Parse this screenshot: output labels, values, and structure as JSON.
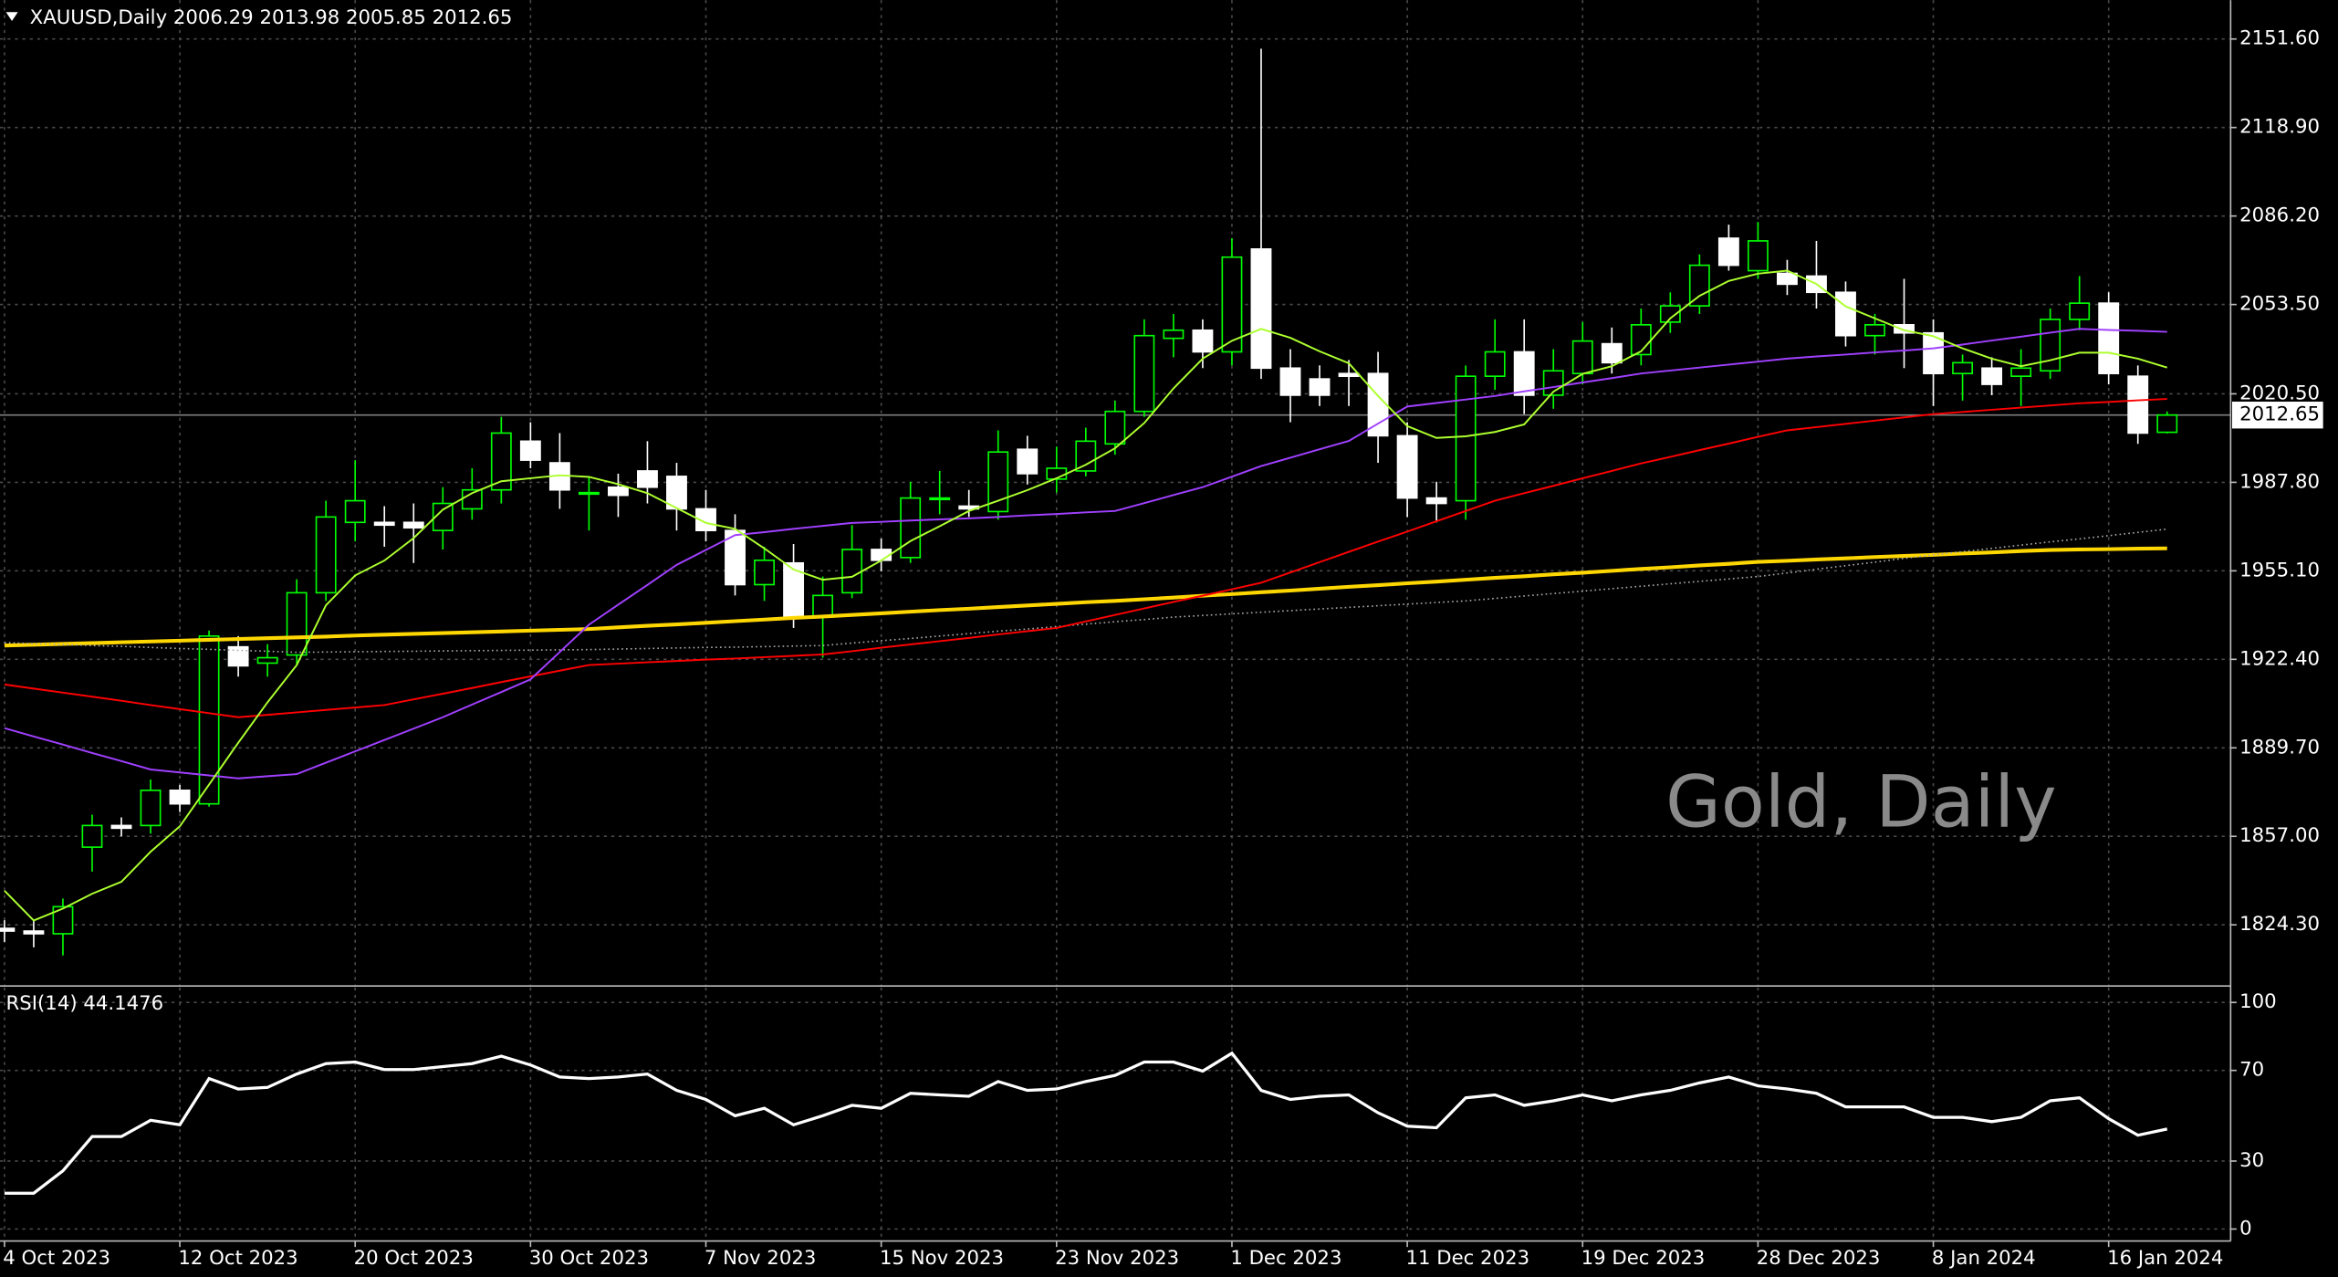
{
  "chart_data": [
    {
      "type": "candlestick",
      "title": "XAUUSD,Daily  2006.29 2013.98 2005.85 2012.65",
      "watermark": "Gold, Daily",
      "categories": [
        "4 Oct 2023",
        null,
        null,
        null,
        null,
        null,
        "12 Oct 2023",
        null,
        null,
        null,
        null,
        null,
        "20 Oct 2023",
        null,
        null,
        null,
        null,
        null,
        "30 Oct 2023",
        null,
        null,
        null,
        null,
        null,
        "7 Nov 2023",
        null,
        null,
        null,
        null,
        null,
        "15 Nov 2023",
        null,
        null,
        null,
        null,
        null,
        "23 Nov 2023",
        null,
        null,
        null,
        null,
        null,
        "1 Dec 2023",
        null,
        null,
        null,
        null,
        null,
        "11 Dec 2023",
        null,
        null,
        null,
        null,
        null,
        "19 Dec 2023",
        null,
        null,
        null,
        null,
        null,
        "28 Dec 2023",
        null,
        null,
        null,
        null,
        null,
        "8 Jan 2024",
        null,
        null,
        null,
        null,
        null,
        "16 Jan 2024",
        null,
        null
      ],
      "open": [
        1823,
        1822,
        1821,
        1853,
        1861,
        1861,
        1874,
        1869,
        1927,
        1921,
        1924,
        1947,
        1973,
        1973,
        1973,
        1970,
        1978,
        1985,
        2003,
        1995,
        1984,
        1986,
        1992,
        1990,
        1978,
        1970,
        1950,
        1958,
        1938,
        1947,
        1963,
        1960,
        1982,
        1979,
        1977,
        2000,
        1989,
        1992,
        2002,
        2014,
        2041,
        2044,
        2036,
        2074,
        2030,
        2026,
        2028,
        2028,
        2005,
        1982,
        1981,
        2027,
        2036,
        2020,
        2028,
        2039,
        2035,
        2047,
        2053,
        2078,
        2066,
        2065,
        2064,
        2058,
        2042,
        2046,
        2043,
        2028,
        2030,
        2027,
        2029,
        2048,
        2054,
        2027,
        2006.29
      ],
      "high": [
        1826,
        1826,
        1834,
        1865,
        1864,
        1878,
        1876,
        1933,
        1931,
        1928,
        1952,
        1981,
        1996,
        1979,
        1980,
        1986,
        1993,
        2012,
        2010,
        2006,
        1990,
        1991,
        2003,
        1995,
        1985,
        1976,
        1964,
        1965,
        1953,
        1972,
        1967,
        1988,
        1992,
        1985,
        2007,
        2005,
        2001,
        2008,
        2018,
        2048,
        2050,
        2048,
        2078,
        2148,
        2037,
        2031,
        2033,
        2036,
        2010,
        1988,
        2031,
        2048,
        2048,
        2037,
        2047,
        2045,
        2052,
        2058,
        2072,
        2083,
        2084,
        2070,
        2077,
        2062,
        2050,
        2063,
        2048,
        2035,
        2034,
        2037,
        2052,
        2064,
        2058,
        2031,
        2013.98
      ],
      "low": [
        1818,
        1816,
        1813,
        1844,
        1857,
        1858,
        1866,
        1868,
        1916,
        1916,
        1920,
        1944,
        1966,
        1964,
        1958,
        1963,
        1974,
        1980,
        1993,
        1978,
        1970,
        1975,
        1980,
        1970,
        1966,
        1946,
        1944,
        1934,
        1923,
        1945,
        1955,
        1958,
        1976,
        1975,
        1974,
        1987,
        1984,
        1990,
        1998,
        2012,
        2034,
        2030,
        2031,
        2026,
        2010,
        2016,
        2016,
        1995,
        1975,
        1973,
        1974,
        2022,
        2013,
        2015,
        2024,
        2028,
        2031,
        2043,
        2050,
        2066,
        2063,
        2057,
        2052,
        2038,
        2035,
        2030,
        2016,
        2018,
        2020,
        2016,
        2026,
        2044,
        2024,
        2002,
        2005.85
      ],
      "close": [
        1822,
        1821,
        1831,
        1861,
        1860,
        1874,
        1869,
        1931,
        1920,
        1923,
        1947,
        1975,
        1981,
        1972,
        1971,
        1980,
        1985,
        2006,
        1996,
        1985,
        1984,
        1983,
        1986,
        1978,
        1970,
        1950,
        1959,
        1938,
        1946,
        1963,
        1959,
        1982,
        1982,
        1978,
        1999,
        1991,
        1993,
        2003,
        2014,
        2042,
        2044,
        2036,
        2071,
        2030,
        2020,
        2020,
        2027,
        2005,
        1982,
        1980,
        2027,
        2036,
        2020,
        2029,
        2040,
        2032,
        2046,
        2053,
        2068,
        2068,
        2077,
        2061,
        2058,
        2042,
        2046,
        2043,
        2028,
        2032,
        2024,
        2030,
        2048,
        2054,
        2028,
        2006,
        2012.65
      ],
      "up_color": "#00ff00",
      "down_color": "#ffffff",
      "lines": [
        {
          "color": "#ffd700",
          "style": "thick",
          "values": [
            1927.5,
            1927.8,
            1928.1,
            1928.4,
            1928.7,
            1929.0,
            1929.3,
            1929.6,
            1929.9,
            1930.2,
            1930.5,
            1930.8,
            1931.2,
            1931.5,
            1931.8,
            1932.1,
            1932.4,
            1932.7,
            1933.0,
            1933.3,
            1933.6,
            1934.2,
            1934.8,
            1935.3,
            1935.9,
            1936.5,
            1937.1,
            1937.7,
            1938.2,
            1938.8,
            1939.4,
            1940.0,
            1940.6,
            1941.1,
            1941.7,
            1942.3,
            1942.9,
            1943.5,
            1944.0,
            1944.6,
            1945.2,
            1945.9,
            1946.5,
            1947.2,
            1947.8,
            1948.5,
            1949.2,
            1949.8,
            1950.5,
            1951.1,
            1951.8,
            1952.5,
            1953.1,
            1953.8,
            1954.4,
            1955.1,
            1955.8,
            1956.4,
            1957.1,
            1957.7,
            1958.4,
            1958.8,
            1959.3,
            1959.7,
            1960.2,
            1960.6,
            1961.0,
            1961.5,
            1961.9,
            1962.4,
            1962.8,
            1963.0,
            1963.1,
            1963.3,
            1963.4
          ]
        },
        {
          "color": "#a9a9a9",
          "style": "dotted",
          "values": [
            1928.6,
            1928.2,
            1927.9,
            1927.5,
            1927.2,
            1926.8,
            1926.4,
            1926.1,
            1925.7,
            1925.4,
            1925.0,
            1925.1,
            1925.2,
            1925.3,
            1925.4,
            1925.5,
            1925.6,
            1925.7,
            1925.8,
            1925.9,
            1926.0,
            1926.2,
            1926.4,
            1926.6,
            1926.8,
            1926.9,
            1927.1,
            1927.3,
            1927.5,
            1928.4,
            1929.3,
            1930.1,
            1931.0,
            1931.9,
            1932.8,
            1933.6,
            1934.5,
            1935.4,
            1936.3,
            1937.1,
            1938.0,
            1938.6,
            1939.2,
            1939.8,
            1940.4,
            1941.0,
            1941.6,
            1942.2,
            1942.8,
            1943.4,
            1944.0,
            1944.9,
            1945.8,
            1946.7,
            1947.6,
            1948.5,
            1949.4,
            1950.3,
            1951.2,
            1952.1,
            1953.0,
            1954.3,
            1955.7,
            1957.0,
            1958.3,
            1959.7,
            1961.0,
            1962.2,
            1963.4,
            1964.6,
            1965.8,
            1966.9,
            1968.1,
            1969.3,
            1970.5
          ]
        },
        {
          "color": "#ff0000",
          "style": "solid",
          "values": [
            1913.1,
            1911.6,
            1910.1,
            1908.6,
            1907.1,
            1905.5,
            1904.0,
            1902.5,
            1901.0,
            1901.9,
            1902.8,
            1903.7,
            1904.6,
            1905.5,
            1907.6,
            1909.7,
            1911.8,
            1914.0,
            1916.1,
            1918.2,
            1920.3,
            1920.8,
            1921.3,
            1921.8,
            1922.3,
            1922.7,
            1923.2,
            1923.7,
            1924.2,
            1925.4,
            1926.7,
            1927.9,
            1929.1,
            1930.3,
            1931.6,
            1932.8,
            1934.0,
            1936.4,
            1938.8,
            1941.2,
            1943.6,
            1945.9,
            1948.3,
            1950.7,
            1954.5,
            1958.3,
            1962.1,
            1965.9,
            1969.6,
            1973.4,
            1977.2,
            1981.0,
            1983.8,
            1986.5,
            1989.3,
            1992.0,
            1994.8,
            1997.2,
            1999.7,
            2002.1,
            2004.6,
            2007.0,
            2008.2,
            2009.4,
            2010.6,
            2011.8,
            2013.0,
            2013.8,
            2014.6,
            2015.4,
            2016.2,
            2017.0,
            2017.5,
            2018.1,
            2018.6
          ]
        },
        {
          "color": "#a040ff",
          "style": "solid",
          "values": [
            1897.0,
            1893.9,
            1890.9,
            1887.8,
            1884.8,
            1881.7,
            1880.6,
            1879.5,
            1878.4,
            1879.2,
            1880.0,
            1884.2,
            1888.4,
            1892.6,
            1896.8,
            1901.0,
            1905.7,
            1910.3,
            1915.0,
            1925.1,
            1935.2,
            1942.6,
            1949.9,
            1957.3,
            1962.8,
            1968.3,
            1969.4,
            1970.6,
            1971.7,
            1972.8,
            1973.2,
            1973.7,
            1974.1,
            1974.5,
            1975.0,
            1975.6,
            1976.1,
            1976.7,
            1977.2,
            1980.1,
            1983.1,
            1986.0,
            1989.9,
            1993.8,
            1996.9,
            2000.0,
            2003.1,
            2009.5,
            2015.8,
            2017.1,
            2018.4,
            2019.7,
            2021.4,
            2023.0,
            2024.7,
            2026.3,
            2028.0,
            2029.1,
            2030.2,
            2031.3,
            2032.4,
            2033.5,
            2034.3,
            2035.0,
            2035.8,
            2036.5,
            2037.3,
            2038.7,
            2040.2,
            2041.6,
            2043.1,
            2044.5,
            2044.1,
            2043.8,
            2043.4
          ]
        },
        {
          "color": "#adff2f",
          "style": "solid",
          "values": [
            1836.9,
            1825.9,
            1830.3,
            1835.8,
            1840.2,
            1851.3,
            1860.7,
            1876.1,
            1891.6,
            1906.5,
            1920.3,
            1942.4,
            1953.4,
            1958.9,
            1967.2,
            1977.7,
            1983.8,
            1988.2,
            1989.3,
            1990.4,
            1989.8,
            1987.1,
            1983.8,
            1978.3,
            1972.8,
            1970.6,
            1963.4,
            1955.6,
            1951.8,
            1952.9,
            1958.9,
            1966.1,
            1971.6,
            1977.2,
            1981.0,
            1984.9,
            1989.3,
            1994.3,
            2000.4,
            2009.7,
            2022.5,
            2033.5,
            2040.1,
            2044.5,
            2041.2,
            2036.2,
            2031.8,
            2019.7,
            2008.6,
            2004.2,
            2004.8,
            2006.4,
            2009.2,
            2021.3,
            2027.9,
            2030.7,
            2036.2,
            2048.4,
            2056.7,
            2062.2,
            2064.9,
            2066.0,
            2061.1,
            2052.8,
            2048.4,
            2044.0,
            2041.8,
            2037.3,
            2033.5,
            2030.7,
            2032.9,
            2035.7,
            2035.7,
            2033.5,
            2030.2
          ]
        }
      ],
      "last_price": 2012.65,
      "ylim": [
        1801.7,
        2165.95
      ],
      "yticks": [
        {
          "value": 2151.6,
          "label": "2151.60"
        },
        {
          "value": 2118.9,
          "label": "2118.90"
        },
        {
          "value": 2086.2,
          "label": "2086.20"
        },
        {
          "value": 2053.5,
          "label": "2053.50"
        },
        {
          "value": 2020.5,
          "label": "2020.50"
        },
        {
          "value": 1987.8,
          "label": "1987.80"
        },
        {
          "value": 1955.1,
          "label": "1955.10"
        },
        {
          "value": 1922.4,
          "label": "1922.40"
        },
        {
          "value": 1889.7,
          "label": "1889.70"
        },
        {
          "value": 1857.0,
          "label": "1857.00"
        },
        {
          "value": 1824.3,
          "label": "1824.30"
        }
      ],
      "grid": true
    },
    {
      "type": "line",
      "title": "RSI(14) 44.1476",
      "color": "#ffffff",
      "values": [
        15.8,
        15.8,
        25.7,
        40.8,
        40.8,
        48,
        46,
        66.4,
        61.8,
        62.5,
        68.4,
        73,
        73.7,
        70.4,
        70.4,
        71.7,
        73,
        76.3,
        72.4,
        67.1,
        66.4,
        67.1,
        68.4,
        61.2,
        57.2,
        50,
        53.3,
        46,
        50,
        54.6,
        53.3,
        59.9,
        59.2,
        58.6,
        65.1,
        61.2,
        61.8,
        65.1,
        67.8,
        73.7,
        73.7,
        69.7,
        77.6,
        61.2,
        57.2,
        58.6,
        59.2,
        51.3,
        45.4,
        44.7,
        57.9,
        59.2,
        54.6,
        56.6,
        59.2,
        56.6,
        59.2,
        61.2,
        64.5,
        67.1,
        63.2,
        61.8,
        59.9,
        53.9,
        53.9,
        53.9,
        49.3,
        49.3,
        47.4,
        49.3,
        56.6,
        57.9,
        48.7,
        41.4,
        44.1476
      ],
      "ylim": [
        -5.3,
        106.6
      ],
      "yticks": [
        100,
        70,
        30,
        0
      ],
      "grid": true
    }
  ]
}
